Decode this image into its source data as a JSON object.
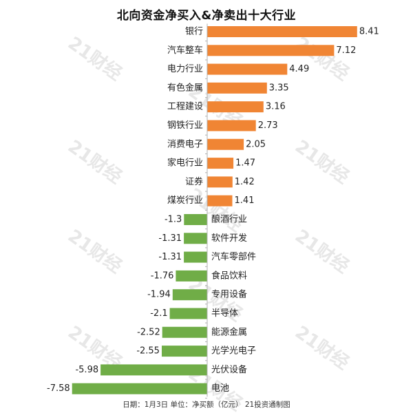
{
  "title": "北向资金净买入&净卖出十大行业",
  "footnote": "日期：1月3日 单位：净买额（亿元） 21投资通制图",
  "watermark_text": "21财经",
  "colors": {
    "positive": "#f08534",
    "negative": "#70ad47",
    "axis": "#b0b0b0",
    "text": "#222222"
  },
  "chart_data": {
    "type": "bar",
    "orientation": "horizontal",
    "title": "北向资金净买入&净卖出十大行业",
    "unit": "亿元",
    "categories": [
      "银行",
      "汽车整车",
      "电力行业",
      "有色金属",
      "工程建设",
      "钢铁行业",
      "消费电子",
      "家电行业",
      "证券",
      "煤炭行业",
      "酿酒行业",
      "软件开发",
      "汽车零部件",
      "食品饮料",
      "专用设备",
      "半导体",
      "能源金属",
      "光学光电子",
      "光伏设备",
      "电池"
    ],
    "values": [
      8.41,
      7.12,
      4.49,
      3.35,
      3.16,
      2.73,
      2.05,
      1.47,
      1.42,
      1.41,
      -1.3,
      -1.31,
      -1.31,
      -1.76,
      -1.94,
      -2.1,
      -2.52,
      -2.55,
      -5.98,
      -7.58
    ],
    "value_labels": [
      "8.41",
      "7.12",
      "4.49",
      "3.35",
      "3.16",
      "2.73",
      "2.05",
      "1.47",
      "1.42",
      "1.41",
      "-1.3",
      "-1.31",
      "-1.31",
      "-1.76",
      "-1.94",
      "-2.1",
      "-2.52",
      "-2.55",
      "-5.98",
      "-7.58"
    ],
    "xlim": [
      -7.58,
      8.41
    ],
    "grid": false,
    "legend": "none"
  }
}
